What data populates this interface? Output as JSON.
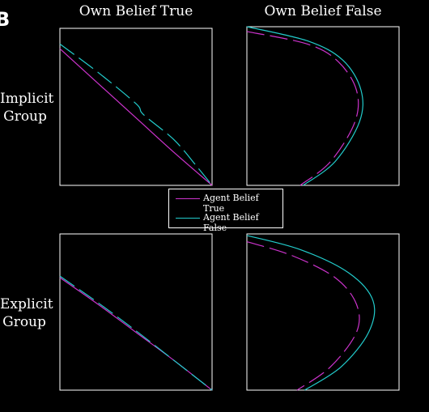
{
  "panel_letter": "B",
  "columns": [
    "Own Belief True",
    "Own Belief False"
  ],
  "rows": [
    {
      "line1": "Implicit",
      "line2": "Group"
    },
    {
      "line1": "Explicit",
      "line2": "Group"
    }
  ],
  "legend": [
    {
      "label": "Agent Belief True",
      "color": "#cc33cc",
      "dash": "solid"
    },
    {
      "label": "Agent Belief False",
      "color": "#22cccc",
      "dash": "solid"
    }
  ],
  "colors": {
    "true_series": "#cc33cc",
    "false_series": "#22cccc",
    "frame": "#ffffff",
    "background": "#000000"
  },
  "chart_data": [
    {
      "type": "line",
      "title": "Own Belief True / Implicit Group",
      "xlim": [
        0,
        1
      ],
      "ylim": [
        0,
        1
      ],
      "series": [
        {
          "name": "Agent Belief True",
          "x": [
            0.0,
            0.25,
            0.5,
            0.75,
            1.0
          ],
          "y": [
            0.87,
            0.65,
            0.43,
            0.21,
            0.0
          ],
          "style": "solid"
        },
        {
          "name": "Agent Belief False",
          "x": [
            0.0,
            0.25,
            0.5,
            0.55,
            0.75,
            0.9,
            1.0
          ],
          "y": [
            0.9,
            0.72,
            0.52,
            0.45,
            0.29,
            0.12,
            0.0
          ],
          "style": "dashed"
        }
      ]
    },
    {
      "type": "line",
      "title": "Own Belief False / Implicit Group",
      "xlim": [
        0,
        1
      ],
      "ylim": [
        0,
        1
      ],
      "series": [
        {
          "name": "Agent Belief True",
          "x": [
            0.0,
            0.4,
            0.6,
            0.72,
            0.71,
            0.55,
            0.35
          ],
          "y": [
            0.97,
            0.89,
            0.78,
            0.6,
            0.4,
            0.15,
            0.0
          ],
          "style": "dashed"
        },
        {
          "name": "Agent Belief False",
          "x": [
            0.0,
            0.4,
            0.63,
            0.75,
            0.74,
            0.58,
            0.37
          ],
          "y": [
            1.0,
            0.91,
            0.79,
            0.6,
            0.4,
            0.15,
            0.0
          ],
          "style": "solid"
        }
      ]
    },
    {
      "type": "line",
      "title": "Own Belief True / Explicit Group",
      "xlim": [
        0,
        1
      ],
      "ylim": [
        0,
        1
      ],
      "series": [
        {
          "name": "Agent Belief True",
          "x": [
            0.0,
            0.25,
            0.5,
            0.75,
            1.0
          ],
          "y": [
            0.72,
            0.55,
            0.37,
            0.19,
            0.0
          ],
          "style": "solid"
        },
        {
          "name": "Agent Belief False",
          "x": [
            0.0,
            0.25,
            0.5,
            0.75,
            1.0
          ],
          "y": [
            0.73,
            0.56,
            0.38,
            0.19,
            0.0
          ],
          "style": "dashed"
        }
      ]
    },
    {
      "type": "line",
      "title": "Own Belief False / Explicit Group",
      "xlim": [
        0,
        1
      ],
      "ylim": [
        0,
        1
      ],
      "series": [
        {
          "name": "Agent Belief True",
          "x": [
            0.0,
            0.3,
            0.58,
            0.72,
            0.72,
            0.55,
            0.33
          ],
          "y": [
            0.95,
            0.86,
            0.72,
            0.55,
            0.37,
            0.15,
            0.0
          ],
          "style": "dashed"
        },
        {
          "name": "Agent Belief False",
          "x": [
            0.0,
            0.35,
            0.67,
            0.83,
            0.8,
            0.62,
            0.38
          ],
          "y": [
            0.99,
            0.9,
            0.75,
            0.57,
            0.37,
            0.15,
            0.0
          ],
          "style": "solid"
        }
      ]
    }
  ]
}
